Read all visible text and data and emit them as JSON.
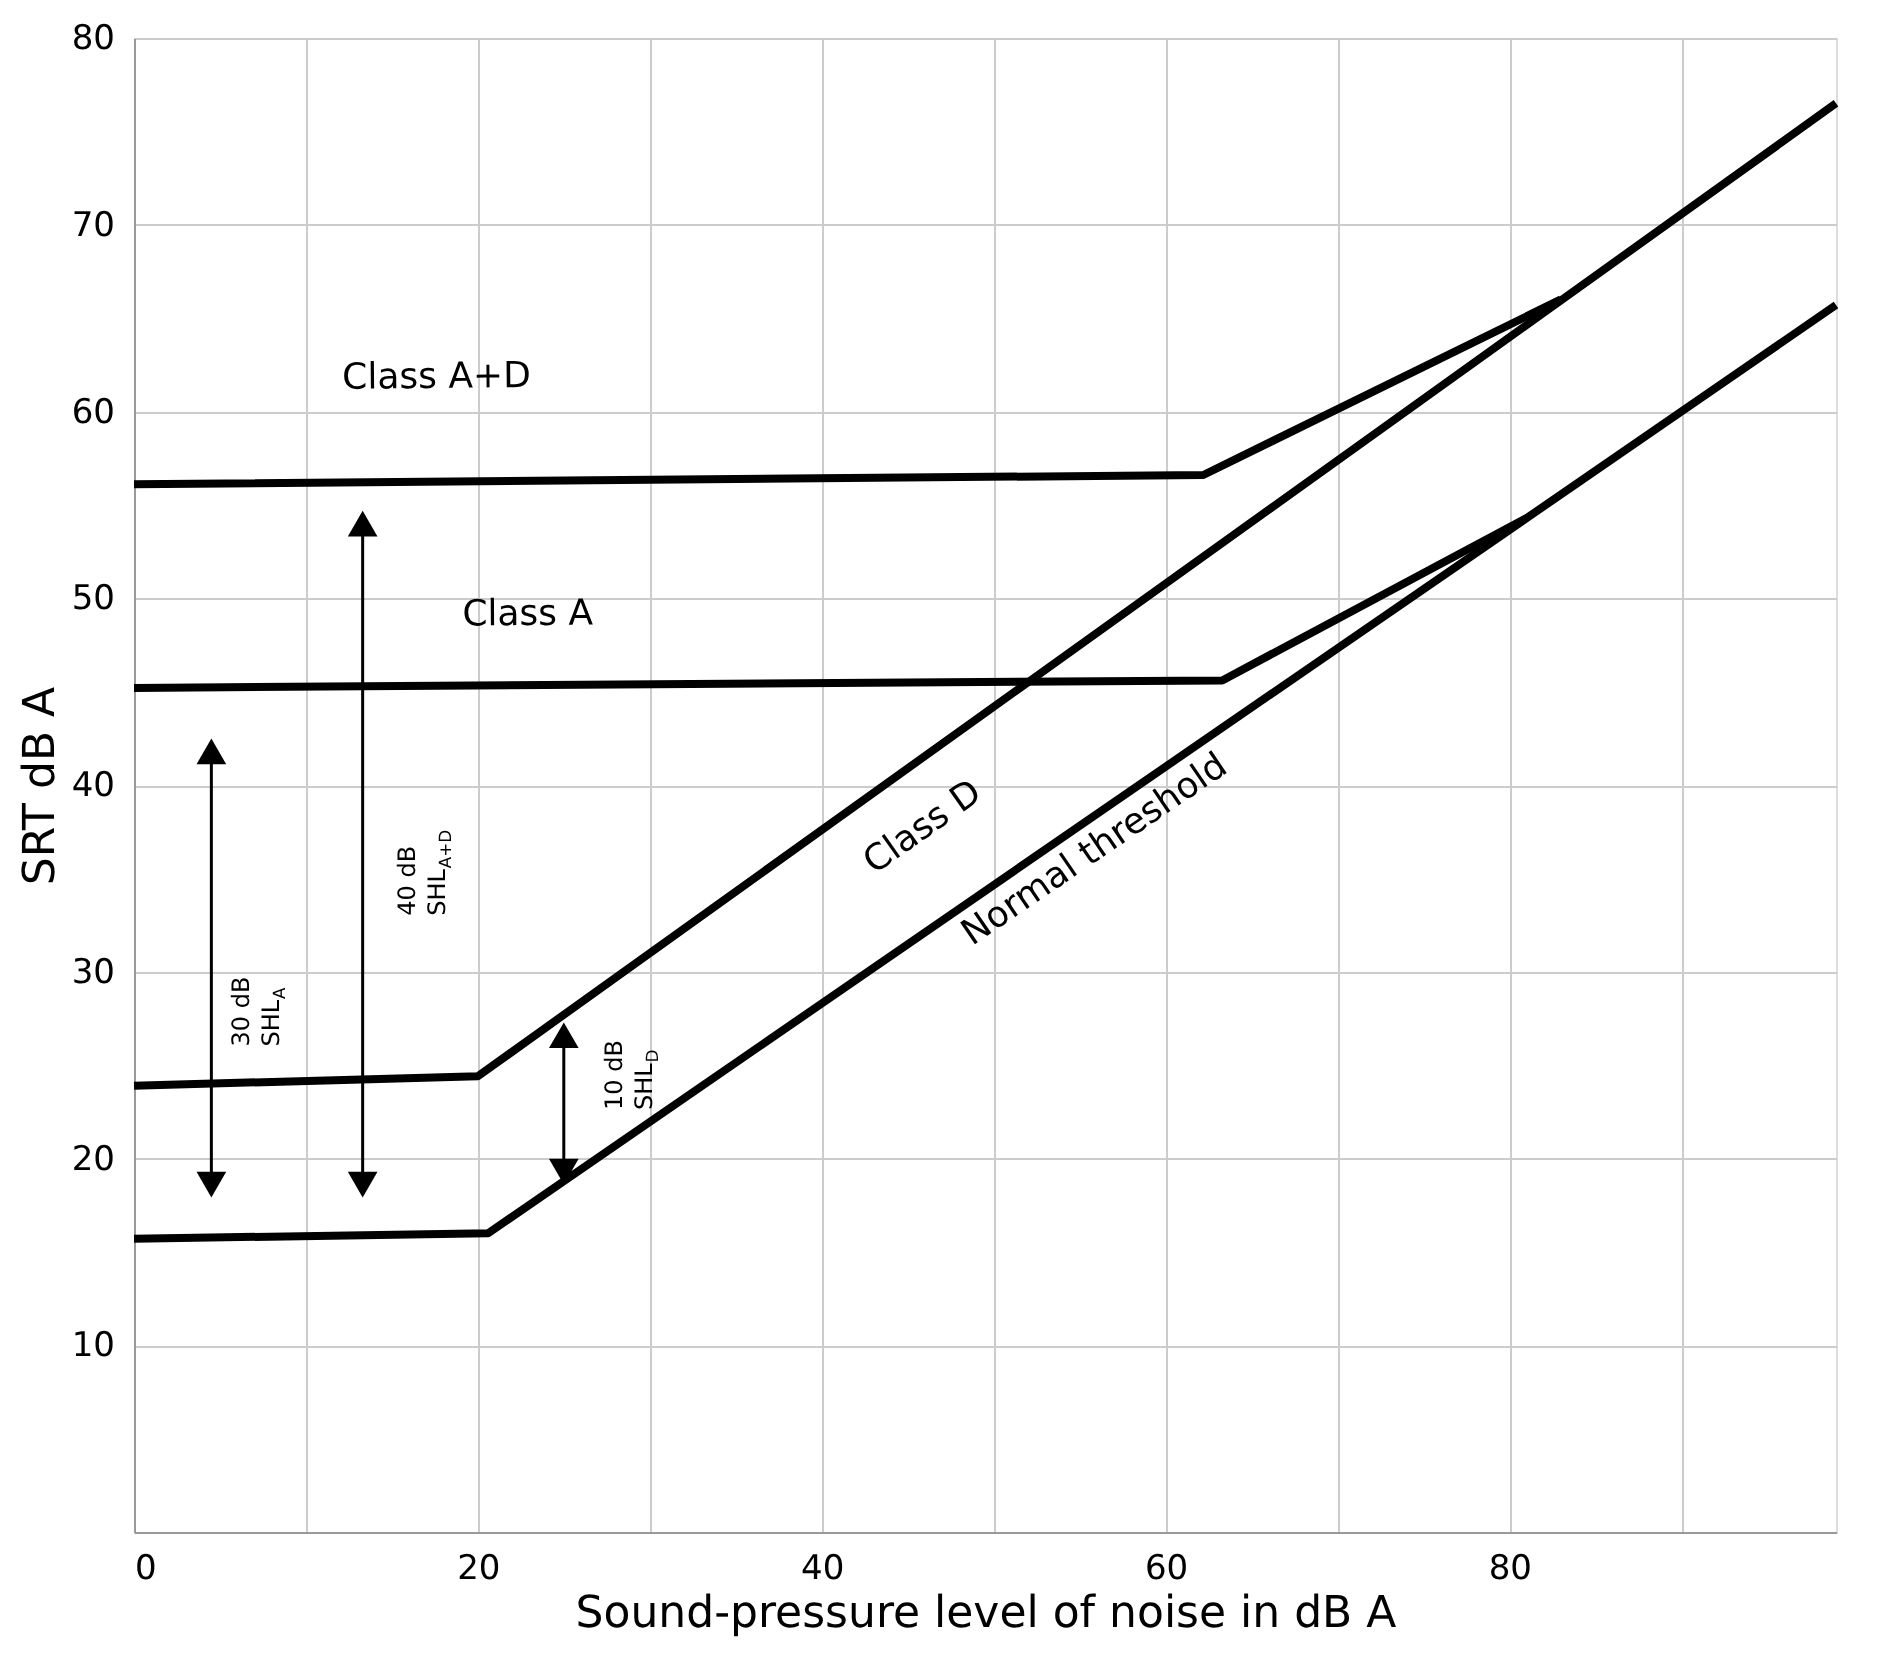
{
  "chart_data": {
    "type": "line",
    "xlabel": "Sound-pressure level of noise in dB A",
    "ylabel": "SRT dB A",
    "xlim": [
      0,
      99
    ],
    "xticks": [
      0,
      {
        "value": 10,
        "label": null
      },
      20,
      {
        "value": 30,
        "label": null
      },
      40,
      {
        "value": 50,
        "label": null
      },
      60,
      {
        "value": 70,
        "label": null
      },
      80,
      {
        "value": 90,
        "label": null
      }
    ],
    "ylim": [
      0,
      80
    ],
    "yticks": [
      {
        "value": 0,
        "label": null
      },
      10,
      20,
      30,
      40,
      50,
      60,
      70,
      80
    ],
    "grid": true,
    "marker": "none",
    "line_style": "solid",
    "series": [
      {
        "color": "#000000",
        "x": [
          0,
          62.2,
          83
        ],
        "values": [
          56.1,
          56.6,
          66
        ]
      },
      {
        "color": "#000000",
        "x": [
          0,
          63.3,
          81
        ],
        "values": [
          45.2,
          45.6,
          54.3
        ]
      },
      {
        "color": "#000000",
        "x": [
          0,
          20,
          99
        ],
        "values": [
          23.9,
          24.4,
          76.5
        ]
      },
      {
        "color": "#000000",
        "x": [
          0,
          20.6,
          99
        ],
        "values": [
          15.7,
          16,
          65.7
        ]
      }
    ],
    "annotations": [
      "Class A+D",
      "Class A",
      "Class D",
      "Normal threshold",
      "30 dB\nSHL$_{A}$",
      "40 dB\nSHL$_{A+D}$",
      "10 dB\nSHL$_{D}$"
    ]
  }
}
